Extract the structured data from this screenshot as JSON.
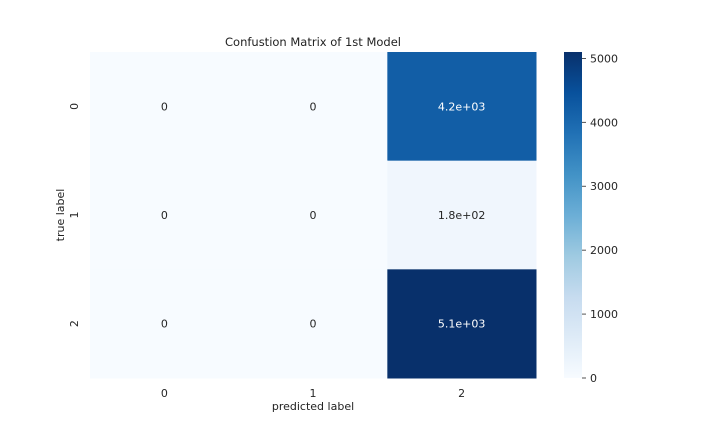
{
  "chart_data": {
    "type": "heatmap",
    "title": "Confustion Matrix of 1st Model",
    "xlabel": "predicted label",
    "ylabel": "true label",
    "x_categories": [
      "0",
      "1",
      "2"
    ],
    "y_categories": [
      "0",
      "1",
      "2"
    ],
    "values": [
      [
        0,
        0,
        4200
      ],
      [
        0,
        0,
        180
      ],
      [
        0,
        0,
        5100
      ]
    ],
    "annotations": [
      [
        "0",
        "0",
        "4.2e+03"
      ],
      [
        "0",
        "0",
        "1.8e+02"
      ],
      [
        "0",
        "0",
        "5.1e+03"
      ]
    ],
    "colorbar": {
      "range": [
        0,
        5100
      ],
      "ticks": [
        0,
        1000,
        2000,
        3000,
        4000,
        5000
      ],
      "colormap": "Blues"
    }
  }
}
